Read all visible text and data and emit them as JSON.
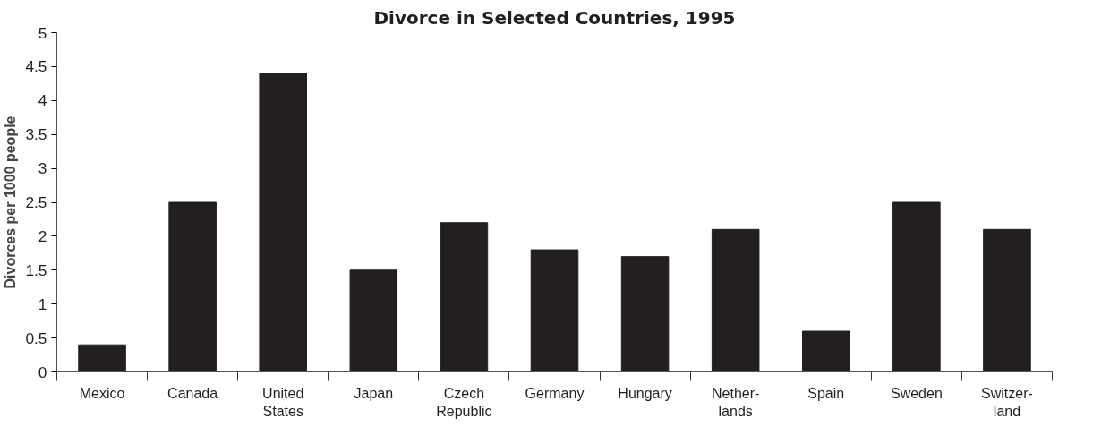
{
  "chart_data": {
    "type": "bar",
    "title": "Divorce in Selected Countries, 1995",
    "ylabel": "Divorces per 1000 people",
    "categories": [
      "Mexico",
      "Canada",
      "United\nStates",
      "Japan",
      "Czech\nRepublic",
      "Germany",
      "Hungary",
      "Nether-\nlands",
      "Spain",
      "Sweden",
      "Switzer-\nland"
    ],
    "values": [
      0.4,
      2.5,
      4.4,
      1.5,
      2.2,
      1.8,
      1.7,
      2.1,
      0.6,
      2.5,
      2.1
    ],
    "color": "#231f20",
    "ylim": [
      0,
      5
    ],
    "yticks": [
      0,
      0.5,
      1,
      1.5,
      2,
      2.5,
      3,
      3.5,
      4,
      4.5,
      5
    ],
    "grid": false
  }
}
